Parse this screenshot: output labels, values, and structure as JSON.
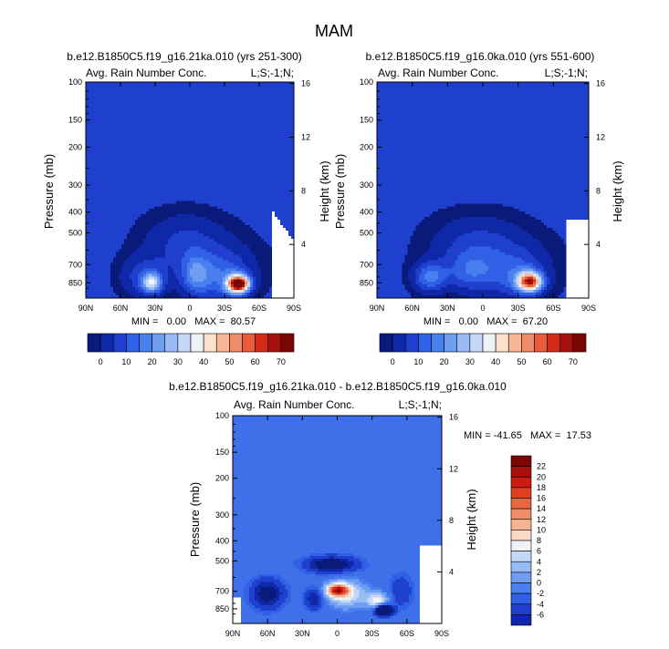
{
  "title": "MAM",
  "panels": [
    {
      "id": "left",
      "case_label": "b.e12.B1850C5.f19_g16.21ka.010 (yrs 251-300)",
      "variable_label": "Avg. Rain Number Conc.",
      "corner_label": "L;S;-1;N;",
      "ylabel": "Pressure (mb)",
      "ylabel_right": "Height (km)",
      "pressure_ticks": [
        "100",
        "150",
        "200",
        "300",
        "400",
        "500",
        "700",
        "850"
      ],
      "height_ticks": [
        "16",
        "12",
        "8",
        "4"
      ],
      "lat_ticks": [
        "90N",
        "60N",
        "30N",
        "0",
        "30S",
        "60S",
        "90S"
      ],
      "min_max": "MIN =   0.00   MAX =  80.57",
      "colorbar_ticks": [
        "0",
        "10",
        "20",
        "30",
        "40",
        "50",
        "60",
        "70"
      ]
    },
    {
      "id": "right",
      "case_label": "b.e12.B1850C5.f19_g16.0ka.010 (yrs 551-600)",
      "variable_label": "Avg. Rain Number Conc.",
      "corner_label": "L;S;-1;N;",
      "ylabel": "Pressure (mb)",
      "ylabel_right": "Height (km)",
      "pressure_ticks": [
        "100",
        "150",
        "200",
        "300",
        "400",
        "500",
        "700",
        "850"
      ],
      "height_ticks": [
        "16",
        "12",
        "8",
        "4"
      ],
      "lat_ticks": [
        "90N",
        "60N",
        "30N",
        "0",
        "30S",
        "60S",
        "90S"
      ],
      "min_max": "MIN =   0.00   MAX =  67.20",
      "colorbar_ticks": [
        "0",
        "10",
        "20",
        "30",
        "40",
        "50",
        "60",
        "70"
      ]
    },
    {
      "id": "diff",
      "case_label": "b.e12.B1850C5.f19_g16.21ka.010 - b.e12.B1850C5.f19_g16.0ka.010",
      "variable_label": "Avg. Rain Number Conc.",
      "corner_label": "L;S;-1;N;",
      "ylabel": "Pressure (mb)",
      "ylabel_right": "Height (km)",
      "pressure_ticks": [
        "100",
        "150",
        "200",
        "300",
        "400",
        "500",
        "700",
        "850"
      ],
      "height_ticks": [
        "16",
        "12",
        "8",
        "4"
      ],
      "lat_ticks": [
        "90N",
        "60N",
        "30N",
        "0",
        "30S",
        "60S",
        "90S"
      ],
      "min_max": "MIN = -41.65   MAX =  17.53",
      "colorbar_ticks": [
        "22",
        "20",
        "18",
        "16",
        "14",
        "12",
        "10",
        "8",
        "6",
        "4",
        "2",
        "0",
        "-2",
        "-4",
        "-6"
      ]
    }
  ],
  "colors": {
    "seq_palette": [
      "#0a1a7a",
      "#0f28a8",
      "#1f40cf",
      "#2f60e6",
      "#4a7fef",
      "#6f9df2",
      "#98bcf5",
      "#c4d9f8",
      "#eef3f8",
      "#fbe0cc",
      "#f7b898",
      "#f18a66",
      "#e85c3c",
      "#d42a1c",
      "#a80f0f",
      "#7a0606"
    ],
    "div_palette": [
      "#7a0606",
      "#a80f0f",
      "#cc1d14",
      "#e0401f",
      "#ea6640",
      "#f08d68",
      "#f5b495",
      "#fadac4",
      "#eef3f8",
      "#c4d9f8",
      "#98bcf5",
      "#6f9df2",
      "#4a7fef",
      "#2f60e6",
      "#1f40cf",
      "#0f28a8",
      "#0a1a7a"
    ]
  },
  "chart_data": [
    {
      "type": "heatmap",
      "title": "b.e12.B1850C5.f19_g16.21ka.010 (yrs 251-300)",
      "variable": "Avg. Rain Number Conc.",
      "xlabel": "",
      "ylabel": "Pressure (mb)",
      "ylabel_right": "Height (km)",
      "x_axis": "latitude",
      "xlim": [
        90,
        -90
      ],
      "y_axis": "pressure (mb)",
      "ylim": [
        100,
        1000
      ],
      "y_scale": "log",
      "grid": false,
      "contour_levels": [
        0,
        5,
        10,
        15,
        20,
        25,
        30,
        35,
        40,
        45,
        50,
        55,
        60,
        65,
        70,
        75
      ],
      "min": 0.0,
      "max": 80.57,
      "features": [
        {
          "lat": -42,
          "pressure": 860,
          "value": 80
        },
        {
          "lat": 33,
          "pressure": 850,
          "value": 35
        },
        {
          "lat": -5,
          "pressure": 780,
          "value": 25
        },
        {
          "lat": 5,
          "pressure": 540,
          "value": 15
        }
      ]
    },
    {
      "type": "heatmap",
      "title": "b.e12.B1850C5.f19_g16.0ka.010 (yrs 551-600)",
      "variable": "Avg. Rain Number Conc.",
      "xlabel": "",
      "ylabel": "Pressure (mb)",
      "ylabel_right": "Height (km)",
      "x_axis": "latitude",
      "xlim": [
        90,
        -90
      ],
      "y_axis": "pressure (mb)",
      "ylim": [
        100,
        1000
      ],
      "y_scale": "log",
      "grid": false,
      "contour_levels": [
        0,
        5,
        10,
        15,
        20,
        25,
        30,
        35,
        40,
        45,
        50,
        55,
        60,
        65,
        70,
        75
      ],
      "min": 0.0,
      "max": 67.2,
      "features": [
        {
          "lat": -40,
          "pressure": 840,
          "value": 65
        },
        {
          "lat": 45,
          "pressure": 800,
          "value": 25
        },
        {
          "lat": 5,
          "pressure": 560,
          "value": 15
        }
      ]
    },
    {
      "type": "heatmap",
      "title": "b.e12.B1850C5.f19_g16.21ka.010 - b.e12.B1850C5.f19_g16.0ka.010",
      "variable": "Avg. Rain Number Conc.",
      "xlabel": "",
      "ylabel": "Pressure (mb)",
      "ylabel_right": "Height (km)",
      "x_axis": "latitude",
      "xlim": [
        90,
        -90
      ],
      "y_axis": "pressure (mb)",
      "ylim": [
        100,
        1000
      ],
      "y_scale": "log",
      "grid": false,
      "contour_levels": [
        -6,
        -4,
        -2,
        0,
        2,
        4,
        6,
        8,
        10,
        12,
        14,
        16,
        18,
        20,
        22
      ],
      "min": -41.65,
      "max": 17.53,
      "features": [
        {
          "lat": 0,
          "pressure": 690,
          "value": 16
        },
        {
          "lat": -35,
          "pressure": 760,
          "value": 8
        },
        {
          "lat": 5,
          "pressure": 520,
          "value": -6
        },
        {
          "lat": 60,
          "pressure": 700,
          "value": -6
        },
        {
          "lat": -40,
          "pressure": 850,
          "value": -40
        }
      ]
    }
  ]
}
